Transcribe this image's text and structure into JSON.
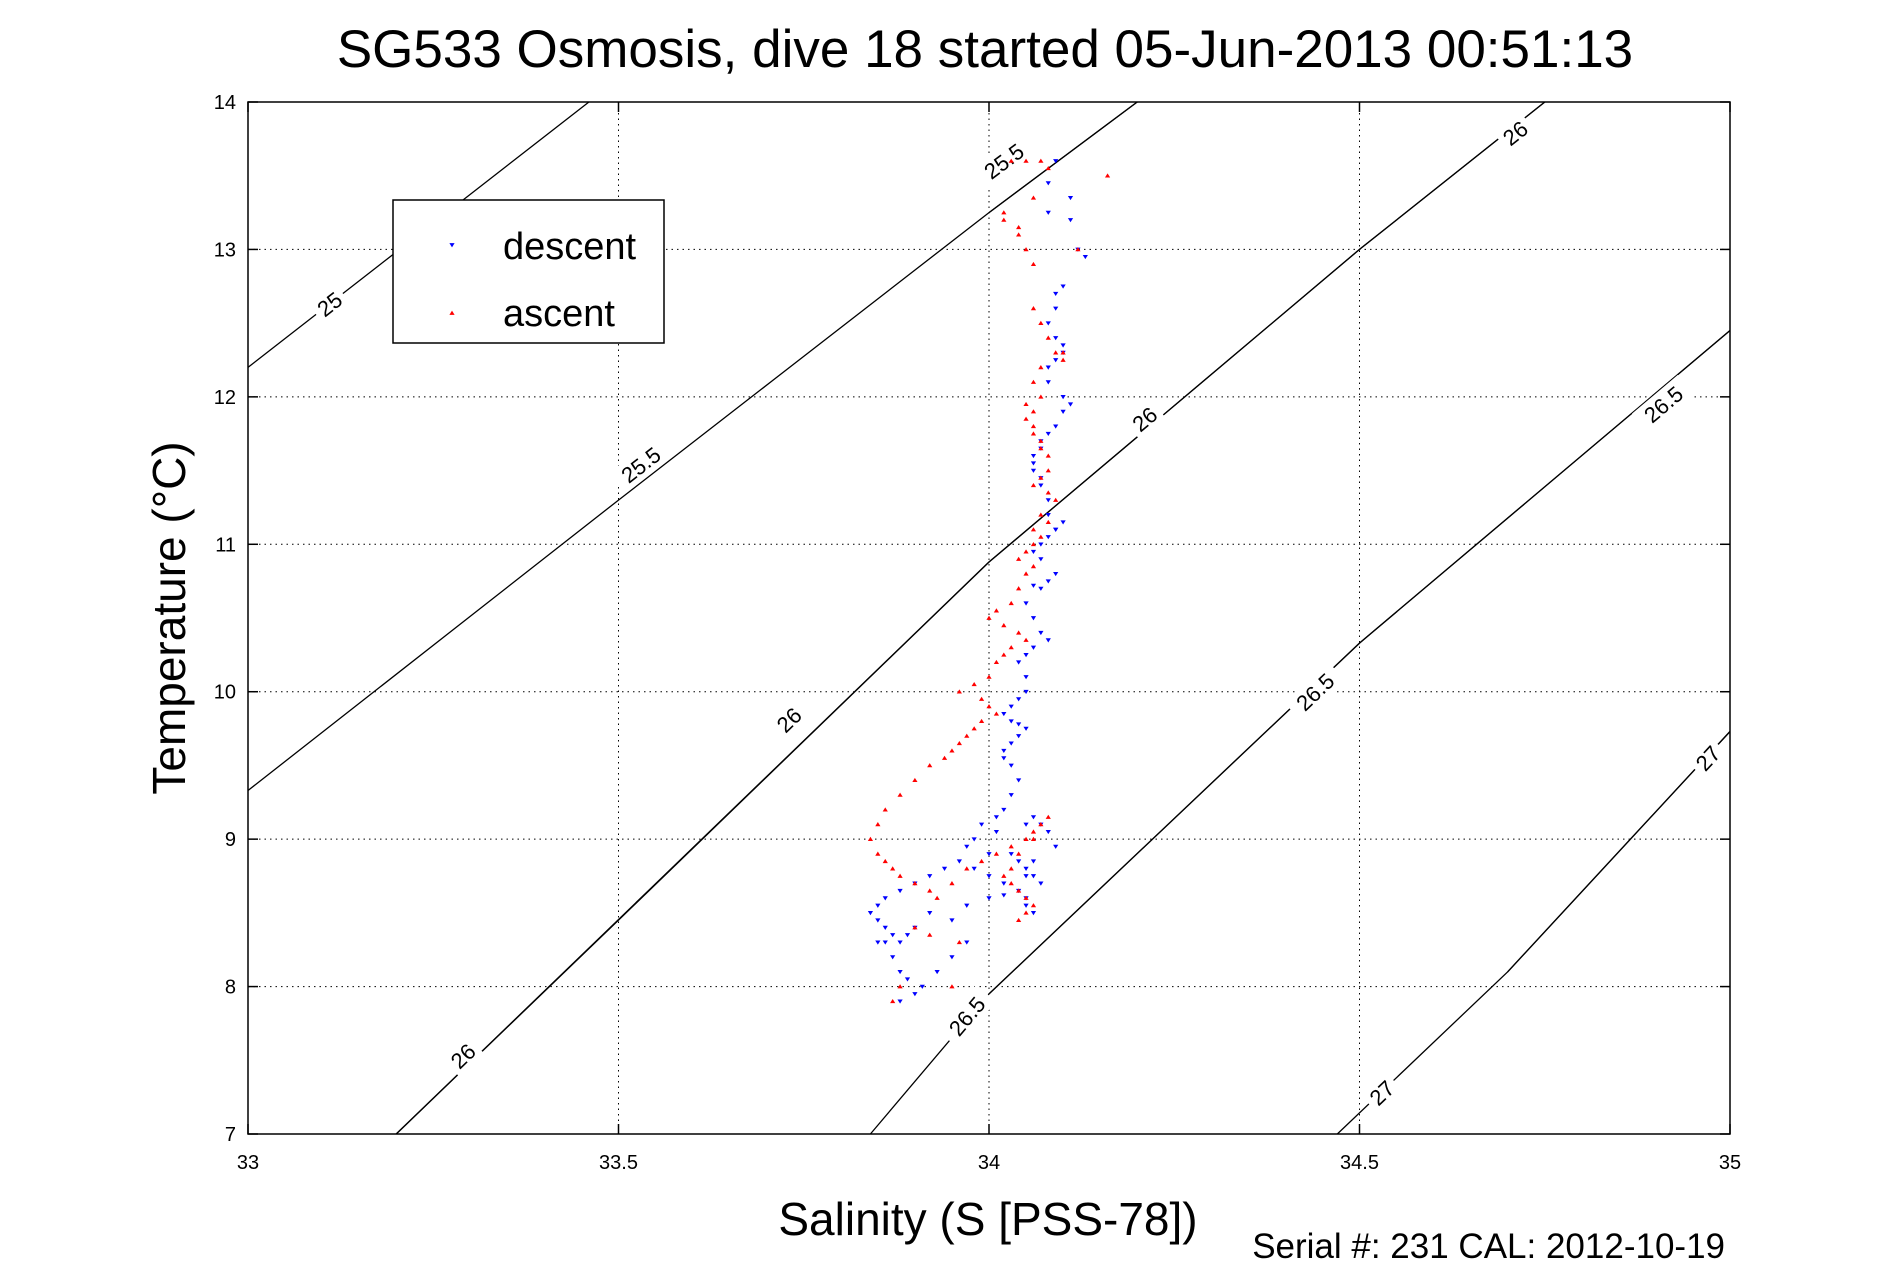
{
  "chart_data": {
    "type": "scatter",
    "title": "SG533 Osmosis, dive 18 started 05-Jun-2013 00:51:13",
    "xlabel": "Salinity (S [PSS-78])",
    "ylabel": "Temperature (°C)",
    "xlim": [
      33,
      35
    ],
    "ylim": [
      7,
      14
    ],
    "x_ticks": [
      33,
      33.5,
      34,
      34.5,
      35
    ],
    "x_tick_labels": [
      "33",
      "33.5",
      "34",
      "34.5",
      "35"
    ],
    "y_ticks": [
      7,
      8,
      9,
      10,
      11,
      12,
      13,
      14
    ],
    "y_tick_labels": [
      "7",
      "8",
      "9",
      "10",
      "11",
      "12",
      "13",
      "14"
    ],
    "grid": true,
    "legend_position": "top-left",
    "footer": "Serial #: 231  CAL: 2012-10-19",
    "contours": [
      {
        "label": "25",
        "points": [
          [
            33.0,
            12.2
          ],
          [
            33.46,
            14.0
          ]
        ],
        "label_at": [
          33.11,
          12.63
        ]
      },
      {
        "label": "25.5",
        "points": [
          [
            33.0,
            9.33
          ],
          [
            33.5,
            11.3
          ],
          [
            34.0,
            13.25
          ],
          [
            34.2,
            14.0
          ]
        ],
        "label_at": [
          33.53,
          11.54
        ]
      },
      {
        "label": "25.5",
        "points": [
          [
            34.0,
            13.25
          ],
          [
            34.2,
            14.0
          ]
        ],
        "label_at": [
          34.02,
          13.6
        ]
      },
      {
        "label": "26",
        "points": [
          [
            33.2,
            7.0
          ],
          [
            33.5,
            8.45
          ],
          [
            34.0,
            10.88
          ],
          [
            34.5,
            13.0
          ],
          [
            34.75,
            14.0
          ]
        ],
        "label_at": [
          33.29,
          7.53
        ]
      },
      {
        "label": "26",
        "points": [
          [
            33.2,
            7.0
          ],
          [
            34.0,
            10.88
          ]
        ],
        "label_at": [
          33.73,
          9.81
        ]
      },
      {
        "label": "26",
        "points": [
          [
            34.0,
            10.88
          ],
          [
            34.5,
            13.0
          ]
        ],
        "label_at": [
          34.21,
          11.85
        ]
      },
      {
        "label": "26",
        "points": [
          [
            34.5,
            13.0
          ],
          [
            34.75,
            14.0
          ]
        ],
        "label_at": [
          34.71,
          13.79
        ]
      },
      {
        "label": "26.5",
        "points": [
          [
            33.84,
            7.0
          ],
          [
            34.0,
            7.95
          ],
          [
            34.5,
            10.33
          ],
          [
            35.0,
            12.45
          ]
        ],
        "label_at": [
          33.97,
          7.8
        ]
      },
      {
        "label": "26.5",
        "points": [
          [
            34.0,
            7.95
          ],
          [
            34.5,
            10.33
          ]
        ],
        "label_at": [
          34.44,
          10.0
        ]
      },
      {
        "label": "26.5",
        "points": [
          [
            34.5,
            10.33
          ],
          [
            35.0,
            12.45
          ]
        ],
        "label_at": [
          34.91,
          11.95
        ]
      },
      {
        "label": "27",
        "points": [
          [
            34.47,
            7.0
          ],
          [
            34.7,
            8.1
          ],
          [
            35.0,
            9.73
          ]
        ],
        "label_at": [
          34.53,
          7.28
        ]
      },
      {
        "label": "27",
        "points": [
          [
            34.7,
            8.1
          ],
          [
            35.0,
            9.73
          ]
        ],
        "label_at": [
          34.97,
          9.55
        ]
      }
    ],
    "series": [
      {
        "name": "descent",
        "color": "#0000ff",
        "marker": "triangle-down",
        "x": [
          34.09,
          34.08,
          34.08,
          34.11,
          34.11,
          34.12,
          34.13,
          34.1,
          34.09,
          34.09,
          34.08,
          34.09,
          34.1,
          34.1,
          34.09,
          34.08,
          34.08,
          34.1,
          34.11,
          34.1,
          34.09,
          34.08,
          34.07,
          34.07,
          34.06,
          34.06,
          34.06,
          34.07,
          34.07,
          34.08,
          34.08,
          34.09,
          34.08,
          34.07,
          34.06,
          34.07,
          34.09,
          34.1,
          34.09,
          34.08,
          34.07,
          34.06,
          34.05,
          34.06,
          34.07,
          34.08,
          34.06,
          34.05,
          34.04,
          34.05,
          34.05,
          34.04,
          34.03,
          34.02,
          34.03,
          34.04,
          34.05,
          34.04,
          34.03,
          34.02,
          34.02,
          34.03,
          34.04,
          34.03,
          34.02,
          34.01,
          33.99,
          33.98,
          33.97,
          34.0,
          34.01,
          34.05,
          34.06,
          34.07,
          34.08,
          34.09,
          34.06,
          34.05,
          34.02,
          34.0,
          33.98,
          33.96,
          33.94,
          33.92,
          33.9,
          33.88,
          33.86,
          33.85,
          33.84,
          33.85,
          33.86,
          33.87,
          33.88,
          33.89,
          33.9,
          33.92,
          33.95,
          33.97,
          34.0,
          34.02,
          34.04,
          34.05,
          34.05,
          34.06,
          34.07,
          34.06,
          34.05,
          34.04,
          34.03,
          33.86,
          33.87,
          33.88,
          33.89,
          33.91,
          33.93,
          33.95,
          33.97,
          33.88,
          33.9,
          33.85
        ],
        "y": [
          13.6,
          13.45,
          13.25,
          13.35,
          13.2,
          13.0,
          12.95,
          12.75,
          12.7,
          12.6,
          12.5,
          12.4,
          12.35,
          12.3,
          12.25,
          12.2,
          12.1,
          12.0,
          11.95,
          11.9,
          11.8,
          11.75,
          11.7,
          11.65,
          11.6,
          11.55,
          11.5,
          11.45,
          11.4,
          11.3,
          11.2,
          11.1,
          11.05,
          11.0,
          10.95,
          10.9,
          11.1,
          11.15,
          10.8,
          10.75,
          10.7,
          10.72,
          10.6,
          10.5,
          10.4,
          10.35,
          10.3,
          10.25,
          10.2,
          10.1,
          10.0,
          9.95,
          9.9,
          9.85,
          9.8,
          9.78,
          9.75,
          9.7,
          9.65,
          9.6,
          9.55,
          9.5,
          9.4,
          9.3,
          9.2,
          9.15,
          9.1,
          9.0,
          8.95,
          8.9,
          9.05,
          9.1,
          9.15,
          9.1,
          9.05,
          8.95,
          8.85,
          8.75,
          8.7,
          8.75,
          8.8,
          8.85,
          8.8,
          8.75,
          8.7,
          8.65,
          8.6,
          8.55,
          8.5,
          8.45,
          8.4,
          8.35,
          8.3,
          8.35,
          8.4,
          8.5,
          8.45,
          8.55,
          8.6,
          8.62,
          8.65,
          8.6,
          8.55,
          8.5,
          8.7,
          8.75,
          8.8,
          8.85,
          8.9,
          8.3,
          8.2,
          8.1,
          8.05,
          8.0,
          8.1,
          8.2,
          8.3,
          7.9,
          7.95,
          8.3
        ]
      },
      {
        "name": "ascent",
        "color": "#ff0000",
        "marker": "triangle-up",
        "x": [
          34.03,
          34.05,
          34.07,
          34.08,
          34.02,
          34.04,
          34.06,
          34.02,
          34.04,
          34.05,
          34.06,
          34.12,
          34.16,
          34.09,
          34.1,
          34.06,
          34.07,
          34.08,
          34.1,
          34.07,
          34.06,
          34.07,
          34.05,
          34.06,
          34.05,
          34.06,
          34.06,
          34.07,
          34.07,
          34.08,
          34.08,
          34.07,
          34.06,
          34.08,
          34.09,
          34.07,
          34.06,
          34.08,
          34.07,
          34.06,
          34.05,
          34.04,
          34.06,
          34.05,
          34.04,
          34.03,
          34.01,
          34.0,
          34.02,
          34.04,
          34.05,
          34.03,
          34.02,
          34.01,
          34.0,
          33.98,
          33.96,
          33.99,
          34.0,
          34.01,
          33.99,
          33.98,
          33.97,
          33.96,
          33.95,
          33.94,
          33.92,
          33.9,
          33.88,
          33.86,
          33.85,
          33.84,
          33.85,
          33.86,
          33.87,
          33.88,
          33.9,
          33.92,
          33.93,
          33.95,
          33.97,
          33.99,
          34.01,
          34.03,
          34.05,
          34.06,
          34.07,
          34.08,
          34.06,
          34.04,
          34.03,
          34.02,
          34.03,
          34.04,
          34.05,
          34.06,
          34.05,
          34.04,
          33.9,
          33.92,
          33.96,
          33.88,
          33.87,
          33.95
        ],
        "y": [
          13.6,
          13.6,
          13.6,
          13.55,
          13.2,
          13.15,
          13.35,
          13.25,
          13.1,
          13.0,
          12.9,
          13.0,
          13.5,
          12.3,
          12.25,
          12.6,
          12.5,
          12.4,
          12.3,
          12.2,
          12.1,
          12.0,
          11.95,
          11.9,
          11.85,
          11.8,
          11.75,
          11.7,
          11.65,
          11.6,
          11.5,
          11.45,
          11.4,
          11.35,
          11.3,
          11.2,
          11.1,
          11.15,
          11.05,
          11.0,
          10.95,
          10.9,
          10.85,
          10.8,
          10.7,
          10.6,
          10.55,
          10.5,
          10.45,
          10.4,
          10.35,
          10.3,
          10.25,
          10.2,
          10.1,
          10.05,
          10.0,
          9.95,
          9.9,
          9.85,
          9.8,
          9.75,
          9.7,
          9.65,
          9.6,
          9.55,
          9.5,
          9.4,
          9.3,
          9.2,
          9.1,
          9.0,
          8.9,
          8.85,
          8.8,
          8.75,
          8.7,
          8.65,
          8.6,
          8.7,
          8.8,
          8.85,
          8.9,
          8.95,
          9.0,
          9.05,
          9.1,
          9.15,
          9.0,
          8.9,
          8.8,
          8.75,
          8.7,
          8.65,
          8.6,
          8.55,
          8.5,
          8.45,
          8.4,
          8.35,
          8.3,
          8.0,
          7.9,
          8.0
        ]
      }
    ]
  }
}
